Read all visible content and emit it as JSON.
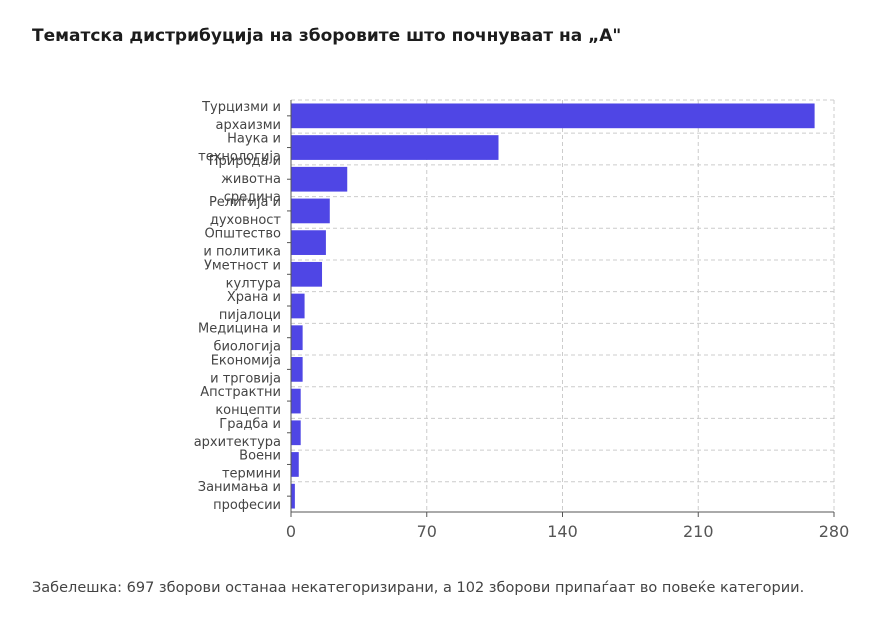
{
  "title": "Тематска дистрибуција на зборовите што почнуваат на „А\"",
  "note": "Забелешка: 697 зборови останаа некатегоризирани, а 102 зборови припаѓаат во повеќе категории.",
  "colors": {
    "bar": "#4f46e5",
    "grid": "#cccccc",
    "axis": "#555555"
  },
  "chart_data": {
    "type": "bar",
    "orientation": "horizontal",
    "categories": [
      "Турцизми и архаизми",
      "Наука и технологија",
      "Природа и животна средина",
      "Религија и духовност",
      "Општество и политика",
      "Уметност и култура",
      "Храна и пијалоци",
      "Медицина и биологија",
      "Економија и трговија",
      "Апстрактни концепти",
      "Градба и архитектура",
      "Воени термини",
      "Занимања и професии"
    ],
    "values": [
      270,
      107,
      29,
      20,
      18,
      16,
      7,
      6,
      6,
      5,
      5,
      4,
      2
    ],
    "ticks": [
      0,
      70,
      140,
      210,
      280
    ],
    "xlim": [
      0,
      280
    ],
    "grid": true,
    "xlabel": "",
    "ylabel": ""
  }
}
